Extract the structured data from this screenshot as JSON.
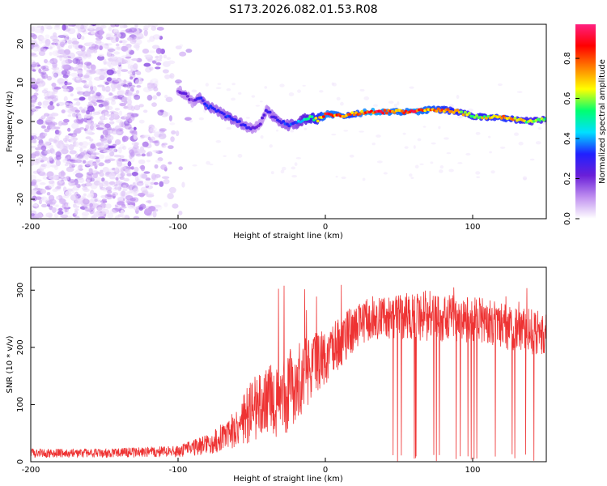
{
  "title": "S173.2026.082.01.53.R08",
  "chart_data": [
    {
      "type": "heatmap",
      "xlabel": "Height of straight line (km)",
      "ylabel": "Frequency (Hz)",
      "xlim": [
        -200,
        150
      ],
      "ylim": [
        -25,
        25
      ],
      "xticks": [
        -200,
        -100,
        0,
        100
      ],
      "xtick_labels": [
        "-200",
        "-100",
        "0",
        "100"
      ],
      "yticks": [
        -20,
        -10,
        0,
        10,
        20
      ],
      "ytick_labels": [
        "-20",
        "-10",
        "0",
        "10",
        "20"
      ],
      "colorbar": {
        "label": "Normalized spectral amplitude",
        "range": [
          0,
          0.97
        ],
        "ticks": [
          0.0,
          0.2,
          0.4,
          0.6,
          0.8
        ],
        "tick_labels": [
          "0.0",
          "0.2",
          "0.4",
          "0.6",
          "0.8"
        ],
        "colormap": [
          "#ffffff",
          "#c090f0",
          "#6a1fd8",
          "#2020ff",
          "#00e0ff",
          "#00ff70",
          "#ffff00",
          "#ff8000",
          "#ff0000",
          "#ff2080"
        ]
      },
      "ridge": {
        "x": [
          -100,
          -95,
          -90,
          -85,
          -80,
          -75,
          -70,
          -65,
          -60,
          -55,
          -50,
          -45,
          -40,
          -35,
          -30,
          -25,
          -20,
          -15,
          -10,
          -5,
          0,
          10,
          20,
          30,
          40,
          50,
          60,
          70,
          80,
          90,
          100,
          110,
          120,
          130,
          140,
          150
        ],
        "freq": [
          8,
          7,
          5,
          6,
          4,
          3,
          2,
          1,
          0,
          -1,
          -2,
          -1,
          3,
          1,
          0,
          -1,
          -0.5,
          0.5,
          1,
          0.5,
          2,
          1.5,
          2,
          2.5,
          2.5,
          2.5,
          2.5,
          3,
          3,
          2.5,
          1.5,
          1,
          1,
          0.5,
          0,
          0.5
        ],
        "amplitude": [
          0.2,
          0.25,
          0.2,
          0.3,
          0.35,
          0.3,
          0.3,
          0.35,
          0.3,
          0.3,
          0.25,
          0.2,
          0.25,
          0.3,
          0.3,
          0.35,
          0.35,
          0.5,
          0.6,
          0.7,
          0.85,
          0.8,
          0.75,
          0.9,
          0.85,
          0.8,
          0.85,
          0.8,
          0.75,
          0.7,
          0.65,
          0.7,
          0.75,
          0.7,
          0.6,
          0.6
        ]
      },
      "scatter_region": {
        "x_range": [
          -200,
          -90
        ],
        "freq_range": [
          -25,
          25
        ],
        "amplitude_range": [
          0.02,
          0.15
        ]
      }
    },
    {
      "type": "line",
      "xlabel": "Height of straight line (km)",
      "ylabel": "SNR (10 * v/v)",
      "xlim": [
        -200,
        150
      ],
      "ylim": [
        0,
        340
      ],
      "xticks": [
        -200,
        -100,
        0,
        100
      ],
      "xtick_labels": [
        "-200",
        "-100",
        "0",
        "100"
      ],
      "yticks": [
        0,
        100,
        200,
        300
      ],
      "ytick_labels": [
        "0",
        "100",
        "200",
        "300"
      ],
      "color": "#ee3333",
      "envelope": {
        "x": [
          -200,
          -150,
          -100,
          -80,
          -60,
          -50,
          -40,
          -30,
          -25,
          -20,
          -10,
          0,
          10,
          20,
          30,
          50,
          70,
          90,
          110,
          130,
          150
        ],
        "mean": [
          15,
          15,
          18,
          30,
          60,
          90,
          105,
          110,
          120,
          140,
          165,
          185,
          210,
          235,
          250,
          255,
          255,
          250,
          245,
          230,
          225
        ],
        "spread": [
          8,
          8,
          10,
          18,
          35,
          55,
          60,
          70,
          75,
          70,
          60,
          50,
          45,
          40,
          40,
          40,
          45,
          40,
          40,
          40,
          40
        ]
      }
    }
  ]
}
